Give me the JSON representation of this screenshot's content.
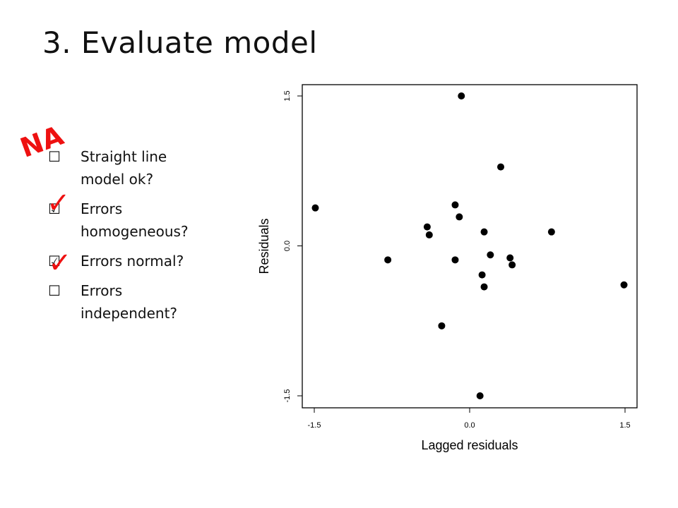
{
  "slide": {
    "title": "3. Evaluate model"
  },
  "checklist": {
    "items": [
      {
        "label": "Straight line model ok?",
        "line1": "Straight line",
        "line2": "model ok?",
        "box": "☐"
      },
      {
        "label": "Errors homogeneous?",
        "line1": "Errors",
        "line2": "homogeneous?",
        "box": "☑"
      },
      {
        "label": "Errors normal?",
        "line1": "Errors normal?",
        "line2": "",
        "box": "☑"
      },
      {
        "label": "Errors independent?",
        "line1": "Errors",
        "line2": "independent?",
        "box": "☐"
      }
    ],
    "annotations": {
      "na": "NA",
      "check1": "✓",
      "check2": "✓",
      "color": "#ee1111"
    }
  },
  "chart_data": {
    "type": "scatter",
    "title": "",
    "xlabel": "Lagged residuals",
    "ylabel": "Residuals",
    "xlim": [
      -1.5,
      1.5
    ],
    "ylim": [
      -1.5,
      1.5
    ],
    "xticks": [
      -1.5,
      0.0,
      1.5
    ],
    "xtick_labels": [
      "-1.5",
      "0.0",
      "1.5"
    ],
    "yticks": [
      -1.5,
      0.0,
      1.5
    ],
    "ytick_labels": [
      "-1.5",
      "0.0",
      "1.5"
    ],
    "grid": false,
    "points": [
      {
        "x": -1.49,
        "y": 0.38
      },
      {
        "x": -0.79,
        "y": -0.14
      },
      {
        "x": -0.41,
        "y": 0.19
      },
      {
        "x": -0.39,
        "y": 0.11
      },
      {
        "x": -0.27,
        "y": -0.8
      },
      {
        "x": -0.14,
        "y": 0.41
      },
      {
        "x": -0.14,
        "y": -0.14
      },
      {
        "x": -0.1,
        "y": 0.29
      },
      {
        "x": -0.08,
        "y": 1.5
      },
      {
        "x": 0.1,
        "y": -1.5
      },
      {
        "x": 0.12,
        "y": -0.29
      },
      {
        "x": 0.14,
        "y": 0.14
      },
      {
        "x": 0.14,
        "y": -0.41
      },
      {
        "x": 0.2,
        "y": -0.09
      },
      {
        "x": 0.3,
        "y": 0.79
      },
      {
        "x": 0.39,
        "y": -0.12
      },
      {
        "x": 0.41,
        "y": -0.19
      },
      {
        "x": 0.79,
        "y": 0.14
      },
      {
        "x": 1.49,
        "y": -0.39
      }
    ],
    "marker_color": "#000000"
  }
}
